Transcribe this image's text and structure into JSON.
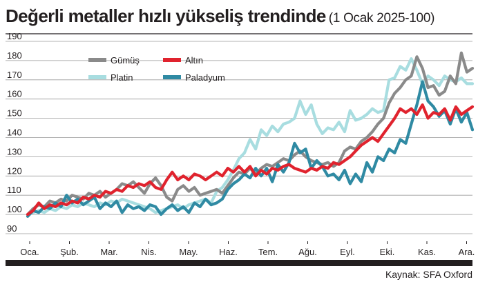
{
  "title": "Değerli metaller hızlı yükseliş trendinde",
  "subtitle": "(1 Ocak 2025-100)",
  "source": "Kaynak: SFA Oxford",
  "chart_data": {
    "type": "line",
    "title": "Değerli metaller hızlı yükseliş trendinde",
    "subtitle": "(1 Ocak 2025-100)",
    "xlabel": "",
    "ylabel": "",
    "ylim": [
      90,
      190
    ],
    "yticks": [
      90,
      100,
      110,
      120,
      130,
      140,
      150,
      160,
      170,
      180,
      190
    ],
    "xlim": [
      0,
      12
    ],
    "months": [
      "Oca.",
      "Şub.",
      "Mar.",
      "Nis.",
      "May.",
      "Haz.",
      "Tem.",
      "Ağu.",
      "Eyl.",
      "Eki.",
      "Kas.",
      "Ara."
    ],
    "grid": "horizontal",
    "legend_position": "top-left",
    "colors": {
      "Gümüş": "#8a8a8a",
      "Altın": "#e0232e",
      "Platin": "#a8dde0",
      "Paladyum": "#2f8aa3"
    },
    "legend_order": [
      "Gümüş",
      "Altın",
      "Platin",
      "Paladyum"
    ],
    "draw_order": [
      "Platin",
      "Gümüş",
      "Paladyum",
      "Altın"
    ],
    "series": [
      {
        "name": "Platin",
        "x": [
          0,
          0.15,
          0.3,
          0.45,
          0.6,
          0.75,
          0.9,
          1.05,
          1.2,
          1.35,
          1.5,
          1.65,
          1.8,
          1.95,
          2.1,
          2.25,
          2.4,
          2.55,
          2.7,
          2.85,
          3.0,
          3.15,
          3.3,
          3.45,
          3.6,
          3.75,
          3.9,
          4.05,
          4.2,
          4.35,
          4.5,
          4.65,
          4.8,
          4.95,
          5.1,
          5.25,
          5.4,
          5.55,
          5.7,
          5.85,
          6.0,
          6.15,
          6.3,
          6.45,
          6.6,
          6.75,
          6.9,
          7.05,
          7.2,
          7.35,
          7.5,
          7.65,
          7.8,
          7.95,
          8.1,
          8.25,
          8.4,
          8.55,
          8.7,
          8.85,
          9.0,
          9.15,
          9.3,
          9.45,
          9.6,
          9.75,
          9.9,
          10.05,
          10.2,
          10.35,
          10.5,
          10.65,
          10.8,
          10.95,
          11.1,
          11.25,
          11.4,
          11.55,
          11.7,
          11.85,
          12.0
        ],
        "values": [
          100,
          101,
          102,
          101,
          103,
          102,
          104,
          103,
          105,
          104,
          106,
          105,
          104,
          106,
          105,
          107,
          106,
          108,
          107,
          106,
          105,
          104,
          103,
          101,
          102,
          103,
          104,
          105,
          103,
          105,
          106,
          107,
          108,
          106,
          112,
          114,
          118,
          123,
          129,
          132,
          139,
          134,
          144,
          141,
          146,
          143,
          147,
          148,
          150,
          159,
          152,
          157,
          147,
          142,
          145,
          144,
          148,
          143,
          154,
          149,
          150,
          152,
          155,
          153,
          154,
          170,
          171,
          177,
          175,
          181,
          175,
          168,
          172,
          170,
          167,
          172,
          170,
          169,
          171,
          168,
          168
        ]
      },
      {
        "name": "Gümüş",
        "x": [
          0,
          0.15,
          0.3,
          0.45,
          0.6,
          0.75,
          0.9,
          1.05,
          1.2,
          1.35,
          1.5,
          1.65,
          1.8,
          1.95,
          2.1,
          2.25,
          2.4,
          2.55,
          2.7,
          2.85,
          3.0,
          3.15,
          3.3,
          3.45,
          3.6,
          3.75,
          3.9,
          4.05,
          4.2,
          4.35,
          4.5,
          4.65,
          4.8,
          4.95,
          5.1,
          5.25,
          5.4,
          5.55,
          5.7,
          5.85,
          6.0,
          6.15,
          6.3,
          6.45,
          6.6,
          6.75,
          6.9,
          7.05,
          7.2,
          7.35,
          7.5,
          7.65,
          7.8,
          7.95,
          8.1,
          8.25,
          8.4,
          8.55,
          8.7,
          8.85,
          9.0,
          9.15,
          9.3,
          9.45,
          9.6,
          9.75,
          9.9,
          10.05,
          10.2,
          10.35,
          10.5,
          10.65,
          10.8,
          10.95,
          11.1,
          11.25,
          11.4,
          11.55,
          11.7,
          11.85,
          12.0
        ],
        "values": [
          100,
          103,
          105,
          104,
          107,
          106,
          108,
          107,
          110,
          109,
          108,
          111,
          110,
          112,
          109,
          111,
          113,
          116,
          115,
          117,
          114,
          111,
          116,
          119,
          115,
          109,
          107,
          113,
          115,
          112,
          114,
          110,
          111,
          112,
          113,
          111,
          115,
          119,
          122,
          121,
          124,
          121,
          124,
          126,
          125,
          127,
          129,
          128,
          131,
          133,
          130,
          128,
          127,
          126,
          127,
          125,
          127,
          133,
          135,
          134,
          138,
          140,
          143,
          147,
          150,
          158,
          163,
          166,
          170,
          172,
          182,
          176,
          166,
          167,
          162,
          164,
          172,
          168,
          184,
          174,
          176
        ]
      },
      {
        "name": "Paladyum",
        "x": [
          0,
          0.15,
          0.3,
          0.45,
          0.6,
          0.75,
          0.9,
          1.05,
          1.2,
          1.35,
          1.5,
          1.65,
          1.8,
          1.95,
          2.1,
          2.25,
          2.4,
          2.55,
          2.7,
          2.85,
          3.0,
          3.15,
          3.3,
          3.45,
          3.6,
          3.75,
          3.9,
          4.05,
          4.2,
          4.35,
          4.5,
          4.65,
          4.8,
          4.95,
          5.1,
          5.25,
          5.4,
          5.55,
          5.7,
          5.85,
          6.0,
          6.15,
          6.3,
          6.45,
          6.6,
          6.75,
          6.9,
          7.05,
          7.2,
          7.35,
          7.5,
          7.65,
          7.8,
          7.95,
          8.1,
          8.25,
          8.4,
          8.55,
          8.7,
          8.85,
          9.0,
          9.15,
          9.3,
          9.45,
          9.6,
          9.75,
          9.9,
          10.05,
          10.2,
          10.35,
          10.5,
          10.65,
          10.8,
          10.95,
          11.1,
          11.25,
          11.4,
          11.55,
          11.7,
          11.85,
          12.0
        ],
        "values": [
          99,
          102,
          101,
          104,
          103,
          106,
          104,
          110,
          106,
          108,
          105,
          107,
          109,
          103,
          106,
          104,
          107,
          101,
          105,
          103,
          104,
          102,
          105,
          104,
          100,
          103,
          105,
          102,
          104,
          101,
          106,
          104,
          108,
          105,
          106,
          108,
          113,
          116,
          118,
          121,
          119,
          124,
          120,
          124,
          117,
          126,
          122,
          127,
          137,
          132,
          134,
          124,
          128,
          125,
          120,
          121,
          118,
          123,
          116,
          121,
          117,
          127,
          122,
          130,
          128,
          134,
          132,
          139,
          137,
          147,
          157,
          169,
          159,
          156,
          151,
          154,
          147,
          155,
          148,
          153,
          144
        ]
      },
      {
        "name": "Altın",
        "x": [
          0,
          0.15,
          0.3,
          0.45,
          0.6,
          0.75,
          0.9,
          1.05,
          1.2,
          1.35,
          1.5,
          1.65,
          1.8,
          1.95,
          2.1,
          2.25,
          2.4,
          2.55,
          2.7,
          2.85,
          3.0,
          3.15,
          3.3,
          3.45,
          3.6,
          3.75,
          3.9,
          4.05,
          4.2,
          4.35,
          4.5,
          4.65,
          4.8,
          4.95,
          5.1,
          5.25,
          5.4,
          5.55,
          5.7,
          5.85,
          6.0,
          6.15,
          6.3,
          6.45,
          6.6,
          6.75,
          6.9,
          7.05,
          7.2,
          7.35,
          7.5,
          7.65,
          7.8,
          7.95,
          8.1,
          8.25,
          8.4,
          8.55,
          8.7,
          8.85,
          9.0,
          9.15,
          9.3,
          9.45,
          9.6,
          9.75,
          9.9,
          10.05,
          10.2,
          10.35,
          10.5,
          10.65,
          10.8,
          10.95,
          11.1,
          11.25,
          11.4,
          11.55,
          11.7,
          11.85,
          12.0
        ],
        "values": [
          100,
          102,
          106,
          103,
          105,
          104,
          106,
          105,
          107,
          106,
          109,
          108,
          110,
          109,
          112,
          111,
          113,
          112,
          115,
          114,
          116,
          115,
          117,
          114,
          113,
          118,
          122,
          118,
          120,
          118,
          121,
          120,
          118,
          120,
          122,
          120,
          124,
          122,
          125,
          122,
          125,
          120,
          123,
          121,
          124,
          123,
          125,
          126,
          124,
          123,
          122,
          124,
          123,
          125,
          124,
          127,
          126,
          128,
          130,
          133,
          136,
          138,
          140,
          138,
          142,
          146,
          150,
          155,
          153,
          155,
          152,
          157,
          150,
          153,
          152,
          155,
          149,
          156,
          152,
          154,
          156
        ]
      }
    ]
  }
}
